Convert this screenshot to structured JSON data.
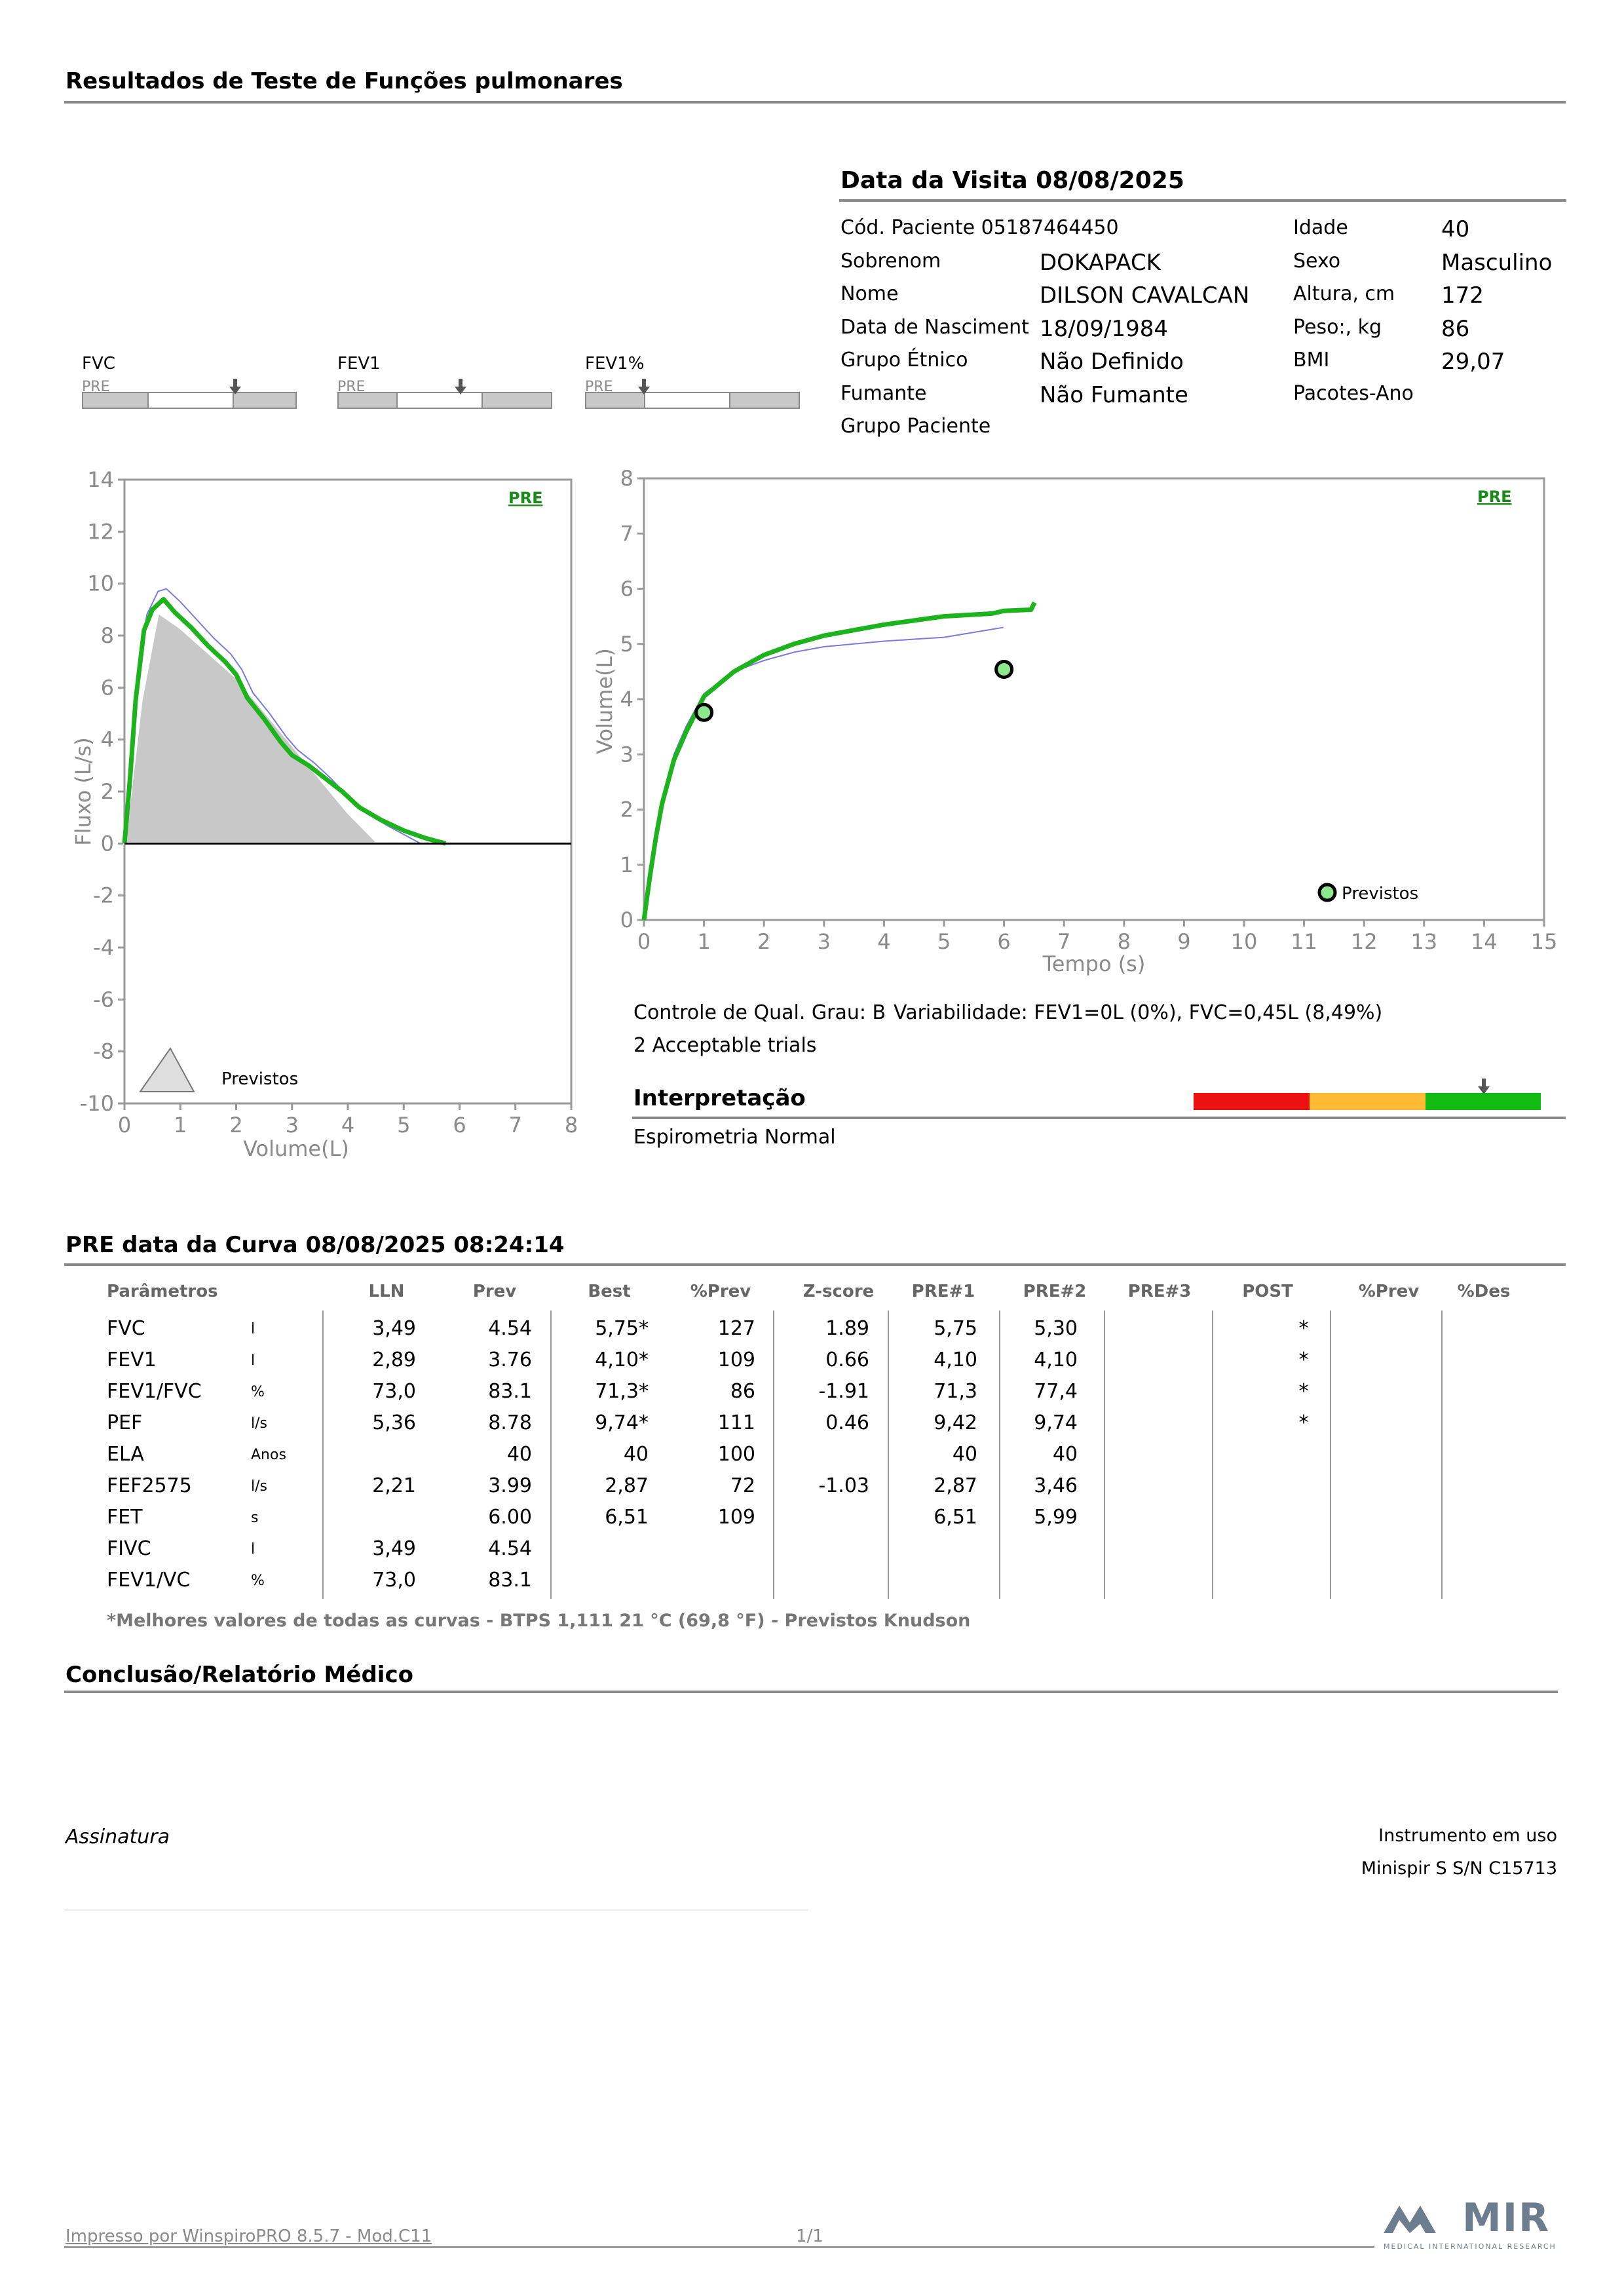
{
  "header": {
    "title": "Resultados de Teste de Funções pulmonares"
  },
  "visit": {
    "title": "Data da Visita 08/08/2025",
    "left": [
      {
        "label": "Cód. Paciente 05187464450",
        "value": ""
      },
      {
        "label": "Sobrenom",
        "value": "DOKAPACK"
      },
      {
        "label": "Nome",
        "value": "DILSON CAVALCAN"
      },
      {
        "label": "Data de Nasciment",
        "value": "18/09/1984"
      },
      {
        "label": "Grupo Étnico",
        "value": "Não Definido"
      },
      {
        "label": "Fumante",
        "value": "Não Fumante"
      },
      {
        "label": "Grupo Paciente",
        "value": ""
      }
    ],
    "right": [
      {
        "label": "Idade",
        "value": "40"
      },
      {
        "label": "Sexo",
        "value": "Masculino"
      },
      {
        "label": "Altura, cm",
        "value": "172"
      },
      {
        "label": "Peso:, kg",
        "value": "86"
      },
      {
        "label": "BMI",
        "value": "29,07"
      },
      {
        "label": "Pacotes-Ano",
        "value": ""
      }
    ]
  },
  "mini_bars": [
    {
      "name": "FVC",
      "tag": "PRE"
    },
    {
      "name": "FEV1",
      "tag": "PRE"
    },
    {
      "name": "FEV1%",
      "tag": "PRE"
    }
  ],
  "flow_chart": {
    "tag": "PRE",
    "xlabel": "Volume(L)",
    "ylabel": "Fluxo (L/s)",
    "xticks": [
      "0",
      "1",
      "2",
      "3",
      "4",
      "5",
      "6",
      "7",
      "8"
    ],
    "yticks": [
      "14",
      "12",
      "10",
      "8",
      "6",
      "4",
      "2",
      "0",
      "-2",
      "-4",
      "-6",
      "-8",
      "-10"
    ],
    "legend": "Previstos"
  },
  "vt_chart": {
    "tag": "PRE",
    "xlabel": "Tempo (s)",
    "ylabel": "Volume(L)",
    "xticks": [
      "0",
      "1",
      "2",
      "3",
      "4",
      "5",
      "6",
      "7",
      "8",
      "9",
      "10",
      "11",
      "12",
      "13",
      "14",
      "15"
    ],
    "yticks": [
      "8",
      "7",
      "6",
      "5",
      "4",
      "3",
      "2",
      "1",
      "0"
    ],
    "legend": "Previstos"
  },
  "chart_data": [
    {
      "type": "line",
      "xlim": [
        0,
        8
      ],
      "ylim": [
        -10,
        14
      ],
      "series": [
        {
          "role": "predicted-area",
          "color": "#c8c8c8",
          "points": [
            [
              0,
              0
            ],
            [
              0.3,
              5.5
            ],
            [
              0.6,
              8.9
            ],
            [
              1,
              8.3
            ],
            [
              2,
              6.4
            ],
            [
              3,
              3.8
            ],
            [
              4,
              1.2
            ],
            [
              4.55,
              0
            ]
          ]
        },
        {
          "role": "measured",
          "color": "#1db31d",
          "points": [
            [
              0,
              0
            ],
            [
              0.1,
              2.5
            ],
            [
              0.2,
              5.5
            ],
            [
              0.35,
              8.2
            ],
            [
              0.5,
              9.0
            ],
            [
              0.7,
              9.4
            ],
            [
              0.9,
              8.9
            ],
            [
              1.2,
              8.3
            ],
            [
              1.5,
              7.6
            ],
            [
              1.8,
              7.0
            ],
            [
              2.0,
              6.5
            ],
            [
              2.2,
              5.6
            ],
            [
              2.5,
              4.8
            ],
            [
              2.8,
              3.9
            ],
            [
              3.0,
              3.4
            ],
            [
              3.3,
              3.0
            ],
            [
              3.6,
              2.5
            ],
            [
              3.9,
              2.0
            ],
            [
              4.2,
              1.4
            ],
            [
              4.6,
              0.9
            ],
            [
              5.0,
              0.5
            ],
            [
              5.4,
              0.2
            ],
            [
              5.75,
              0
            ]
          ]
        },
        {
          "role": "second-trial",
          "color": "#7a7ae0",
          "points": [
            [
              0,
              0
            ],
            [
              0.1,
              2.8
            ],
            [
              0.25,
              6.5
            ],
            [
              0.4,
              8.8
            ],
            [
              0.6,
              9.7
            ],
            [
              0.75,
              9.8
            ],
            [
              1.0,
              9.3
            ],
            [
              1.3,
              8.6
            ],
            [
              1.6,
              7.9
            ],
            [
              1.9,
              7.3
            ],
            [
              2.1,
              6.7
            ],
            [
              2.3,
              5.8
            ],
            [
              2.6,
              5.0
            ],
            [
              2.9,
              4.1
            ],
            [
              3.1,
              3.6
            ],
            [
              3.4,
              3.1
            ],
            [
              3.7,
              2.5
            ],
            [
              4.0,
              1.8
            ],
            [
              4.3,
              1.2
            ],
            [
              4.7,
              0.7
            ],
            [
              5.0,
              0.35
            ],
            [
              5.3,
              0
            ]
          ]
        }
      ]
    },
    {
      "type": "line",
      "xlim": [
        0,
        15
      ],
      "ylim": [
        0,
        8
      ],
      "series": [
        {
          "role": "measured",
          "color": "#1db31d",
          "points": [
            [
              0,
              0
            ],
            [
              0.1,
              0.8
            ],
            [
              0.2,
              1.5
            ],
            [
              0.3,
              2.1
            ],
            [
              0.5,
              2.9
            ],
            [
              0.7,
              3.4
            ],
            [
              1,
              4.05
            ],
            [
              1.5,
              4.5
            ],
            [
              2,
              4.8
            ],
            [
              2.5,
              5.0
            ],
            [
              3,
              5.15
            ],
            [
              4,
              5.35
            ],
            [
              5,
              5.5
            ],
            [
              5.8,
              5.55
            ],
            [
              6,
              5.6
            ],
            [
              6.45,
              5.62
            ],
            [
              6.51,
              5.75
            ]
          ]
        },
        {
          "role": "second-trial",
          "color": "#7a7ae0",
          "points": [
            [
              0,
              0
            ],
            [
              0.1,
              0.9
            ],
            [
              0.2,
              1.6
            ],
            [
              0.3,
              2.2
            ],
            [
              0.5,
              3.0
            ],
            [
              0.7,
              3.5
            ],
            [
              1,
              4.1
            ],
            [
              1.5,
              4.5
            ],
            [
              2,
              4.7
            ],
            [
              2.5,
              4.85
            ],
            [
              3,
              4.95
            ],
            [
              4,
              5.05
            ],
            [
              5,
              5.12
            ],
            [
              5.99,
              5.3
            ]
          ]
        },
        {
          "role": "predicted-points",
          "color": "#8de88d",
          "points": [
            [
              1,
              3.76
            ],
            [
              6,
              4.54
            ]
          ]
        }
      ]
    }
  ],
  "quality": {
    "grade": "Controle de Qual. Grau: B",
    "variability": "Variabilidade: FEV1=0L (0%), FVC=0,45L (8,49%)",
    "trials": "2 Acceptable trials"
  },
  "interpretation": {
    "title": "Interpretação",
    "text": "Espirometria Normal",
    "colors": [
      "#ee1111",
      "#ffbb33",
      "#11bb11"
    ]
  },
  "results": {
    "title": "PRE data da Curva 08/08/2025   08:24:14",
    "headers": [
      "Parâmetros",
      "",
      "LLN",
      "Prev",
      "Best",
      "%Prev",
      "Z-score",
      "PRE#1",
      "PRE#2",
      "PRE#3",
      "POST",
      "%Prev",
      "%Des"
    ],
    "rows": [
      [
        "FVC",
        "l",
        "3,49",
        "4.54",
        "5,75*",
        "127",
        "1.89",
        "5,75",
        "5,30",
        "",
        "*",
        "",
        ""
      ],
      [
        "FEV1",
        "l",
        "2,89",
        "3.76",
        "4,10*",
        "109",
        "0.66",
        "4,10",
        "4,10",
        "",
        "*",
        "",
        ""
      ],
      [
        "FEV1/FVC",
        "%",
        "73,0",
        "83.1",
        "71,3*",
        "86",
        "-1.91",
        "71,3",
        "77,4",
        "",
        "*",
        "",
        ""
      ],
      [
        "PEF",
        "l/s",
        "5,36",
        "8.78",
        "9,74*",
        "111",
        "0.46",
        "9,42",
        "9,74",
        "",
        "*",
        "",
        ""
      ],
      [
        "ELA",
        "Anos",
        "",
        "40",
        "40",
        "100",
        "",
        "40",
        "40",
        "",
        "",
        "",
        ""
      ],
      [
        "FEF2575",
        "l/s",
        "2,21",
        "3.99",
        "2,87",
        "72",
        "-1.03",
        "2,87",
        "3,46",
        "",
        "",
        "",
        ""
      ],
      [
        "FET",
        "s",
        "",
        "6.00",
        "6,51",
        "109",
        "",
        "6,51",
        "5,99",
        "",
        "",
        "",
        ""
      ],
      [
        "FIVC",
        "l",
        "3,49",
        "4.54",
        "",
        "",
        "",
        "",
        "",
        "",
        "",
        "",
        ""
      ],
      [
        "FEV1/VC",
        "%",
        "73,0",
        "83.1",
        "",
        "",
        "",
        "",
        "",
        "",
        "",
        "",
        ""
      ]
    ],
    "footnote": "*Melhores valores de todas as curvas - BTPS  1,111  21 °C  (69,8 °F) - Previstos Knudson"
  },
  "conclusion": {
    "title": "Conclusão/Relatório Médico"
  },
  "signature": {
    "label": "Assinatura"
  },
  "instrument": {
    "label": "Instrumento em uso",
    "value": "Minispir S S/N C15713"
  },
  "footer": {
    "printed": "Impresso por WinspiroPRO  8.5.7 - Mod.C11",
    "page": "1/1",
    "logo": "MIR",
    "logo_sub": "MEDICAL INTERNATIONAL RESEARCH"
  }
}
